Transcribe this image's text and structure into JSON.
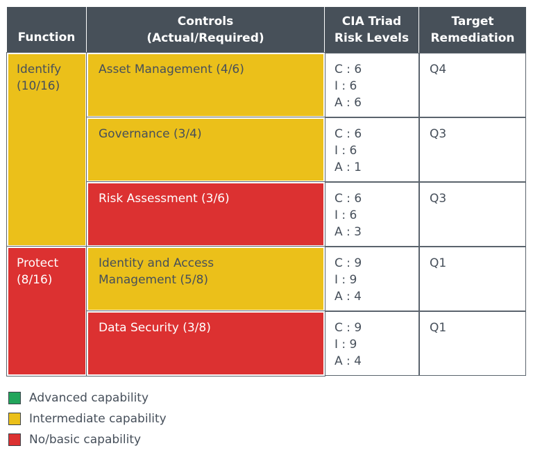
{
  "header": {
    "function": "Function",
    "controls": "Controls\n(Actual/Required)",
    "cia": "CIA Triad\nRisk Levels",
    "target": "Target\nRemediation",
    "color": "#475059"
  },
  "functions": [
    {
      "label": "Identify\n(10/16)",
      "color": "#ebc01a",
      "controls": [
        {
          "label": "Asset Management (4/6)",
          "color": "#ebc01a",
          "cia": [
            "C : 6",
            "I : 6",
            "A : 6"
          ],
          "target": "Q4"
        },
        {
          "label": "Governance (3/4)",
          "color": "#ebc01a",
          "cia": [
            "C : 6",
            "I : 6",
            "A : 1"
          ],
          "target": "Q3"
        },
        {
          "label": "Risk Assessment (3/6)",
          "color": "#dc3131",
          "cia": [
            "C : 6",
            "I : 6",
            "A : 3"
          ],
          "target": "Q3"
        }
      ]
    },
    {
      "label": "Protect\n(8/16)",
      "color": "#dc3131",
      "controls": [
        {
          "label": "Identity and Access\nManagement (5/8)",
          "color": "#ebc01a",
          "cia": [
            "C : 9",
            "I : 9",
            "A : 4"
          ],
          "target": "Q1"
        },
        {
          "label": "Data Security (3/8)",
          "color": "#dc3131",
          "cia": [
            "C : 9",
            "I : 9",
            "A : 4"
          ],
          "target": "Q1"
        }
      ]
    }
  ],
  "legend": [
    {
      "label": "Advanced capability",
      "color": "#22a55b"
    },
    {
      "label": "Intermediate capability",
      "color": "#ebc01a"
    },
    {
      "label": "No/basic capability",
      "color": "#dc3131"
    }
  ]
}
